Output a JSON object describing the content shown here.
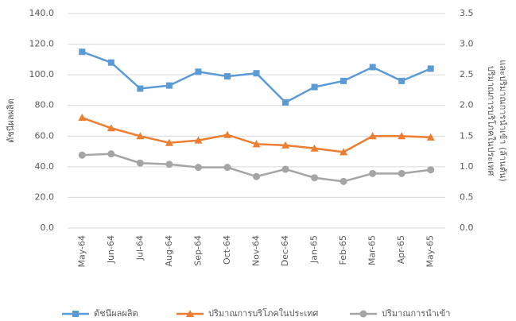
{
  "chart_data": {
    "type": "line",
    "categories": [
      "May-64",
      "Jun-64",
      "Jul-64",
      "Aug-64",
      "Sep-64",
      "Oct-64",
      "Nov-64",
      "Dec-64",
      "Jan-65",
      "Feb-65",
      "Mar-65",
      "Apr-65",
      "May-65"
    ],
    "y_label": "ดัชนีผลผลิต",
    "y2_label": [
      "ปริมาณการบริโภคในประเทศ",
      "และปริมาณการนำเข้า (ล้านตัน)"
    ],
    "ylim": [
      0,
      140
    ],
    "yticks": [
      {
        "value": 0,
        "label": "0.0"
      },
      {
        "value": 20,
        "label": "20.0"
      },
      {
        "value": 40,
        "label": "40.0"
      },
      {
        "value": 60,
        "label": "60.0"
      },
      {
        "value": 80,
        "label": "80.0"
      },
      {
        "value": 100,
        "label": "100.0"
      },
      {
        "value": 120,
        "label": "120.0"
      },
      {
        "value": 140,
        "label": "140.0"
      }
    ],
    "y2lim": [
      0,
      3.5
    ],
    "y2ticks": [
      {
        "value": 0,
        "label": "0.0"
      },
      0.5,
      {
        "value": 1,
        "label": "1.0"
      },
      1.5,
      {
        "value": 2,
        "label": "2.0"
      },
      2.5,
      {
        "value": 3,
        "label": "3.0"
      },
      3.5
    ],
    "grid": true,
    "legend": "bottom",
    "series": [
      {
        "name": "ดัชนีผลผลิต",
        "color": "#5b9bd5",
        "marker": "square",
        "axis": "y",
        "values": [
          115,
          108,
          91,
          93,
          102,
          99,
          101,
          82,
          92,
          96,
          105,
          96,
          104
        ]
      },
      {
        "name": "ปริมาณการบริโภคในประเทศ",
        "color": "#ed7d31",
        "marker": "triangle",
        "axis": "y2",
        "values": [
          1.8,
          1.63,
          1.5,
          1.39,
          1.43,
          1.52,
          1.37,
          1.35,
          1.3,
          1.24,
          1.5,
          1.5,
          1.48
        ]
      },
      {
        "name": "ปริมาณการนำเข้า",
        "color": "#a5a5a5",
        "marker": "circle",
        "axis": "y2",
        "values": [
          1.19,
          1.21,
          1.06,
          1.04,
          0.99,
          0.99,
          0.84,
          0.96,
          0.82,
          0.76,
          0.89,
          0.89,
          0.95
        ]
      }
    ]
  }
}
